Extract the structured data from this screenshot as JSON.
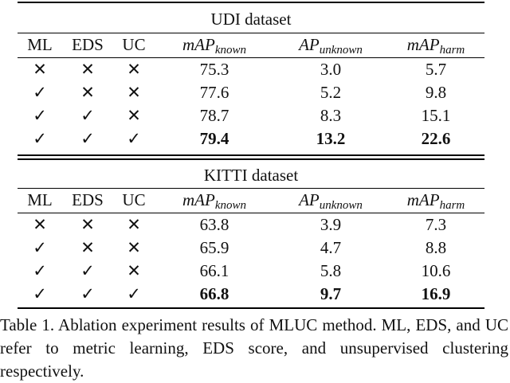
{
  "sections": [
    {
      "title": "UDI dataset",
      "headers": {
        "ml": "ML",
        "eds": "EDS",
        "uc": "UC",
        "m1": "mAP",
        "m1_sub": "known",
        "m2": "AP",
        "m2_sub": "unknown",
        "m3": "mAP",
        "m3_sub": "harm"
      },
      "rows": [
        {
          "ml": "✕",
          "eds": "✕",
          "uc": "✕",
          "m1": "75.3",
          "m2": "3.0",
          "m3": "5.7"
        },
        {
          "ml": "✓",
          "eds": "✕",
          "uc": "✕",
          "m1": "77.6",
          "m2": "5.2",
          "m3": "9.8"
        },
        {
          "ml": "✓",
          "eds": "✓",
          "uc": "✕",
          "m1": "78.7",
          "m2": "8.3",
          "m3": "15.1"
        },
        {
          "ml": "✓",
          "eds": "✓",
          "uc": "✓",
          "m1": "79.4",
          "m2": "13.2",
          "m3": "22.6"
        }
      ]
    },
    {
      "title": "KITTI dataset",
      "headers": {
        "ml": "ML",
        "eds": "EDS",
        "uc": "UC",
        "m1": "mAP",
        "m1_sub": "known",
        "m2": "AP",
        "m2_sub": "unknown",
        "m3": "mAP",
        "m3_sub": "harm"
      },
      "rows": [
        {
          "ml": "✕",
          "eds": "✕",
          "uc": "✕",
          "m1": "63.8",
          "m2": "3.9",
          "m3": "7.3"
        },
        {
          "ml": "✓",
          "eds": "✕",
          "uc": "✕",
          "m1": "65.9",
          "m2": "4.7",
          "m3": "8.8"
        },
        {
          "ml": "✓",
          "eds": "✓",
          "uc": "✕",
          "m1": "66.1",
          "m2": "5.8",
          "m3": "10.6"
        },
        {
          "ml": "✓",
          "eds": "✓",
          "uc": "✓",
          "m1": "66.8",
          "m2": "9.7",
          "m3": "16.9"
        }
      ]
    }
  ],
  "caption": "Table 1. Ablation experiment results of MLUC method. ML, EDS, and UC refer to metric learning, EDS score, and unsupervised clustering respectively."
}
